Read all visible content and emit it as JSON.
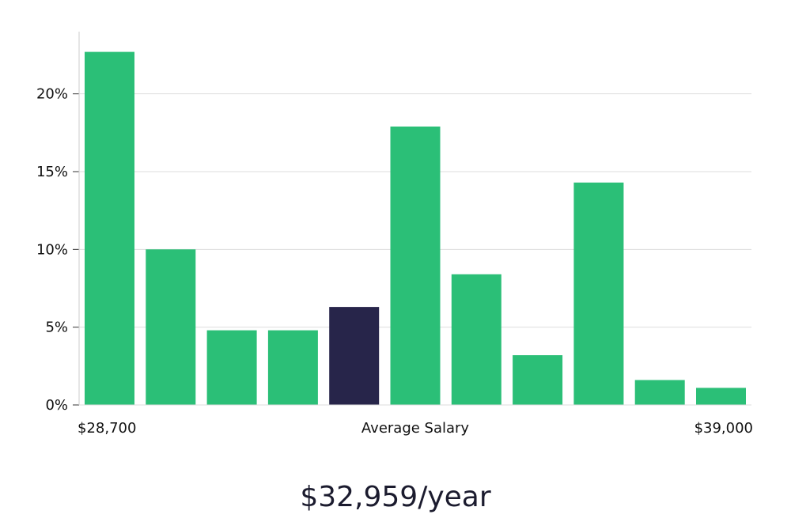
{
  "chart_data": {
    "type": "bar",
    "title": "",
    "xlabel": "Average Salary",
    "ylabel": "",
    "x_min_label": "$28,700",
    "x_max_label": "$39,000",
    "ylim": [
      0,
      24
    ],
    "yticks": [
      0,
      5,
      10,
      15,
      20
    ],
    "ytick_labels": [
      "0%",
      "5%",
      "10%",
      "15%",
      "20%"
    ],
    "values": [
      22.7,
      10.0,
      4.8,
      4.8,
      6.3,
      17.9,
      8.4,
      3.2,
      14.3,
      1.6,
      1.1
    ],
    "highlight_index": 4,
    "grid": true
  },
  "colors": {
    "bar": "#2bbf77",
    "highlight": "#27254a",
    "grid": "#dddddd",
    "axis": "#cccccc"
  },
  "summary": {
    "salary_text": "$32,959/year"
  }
}
